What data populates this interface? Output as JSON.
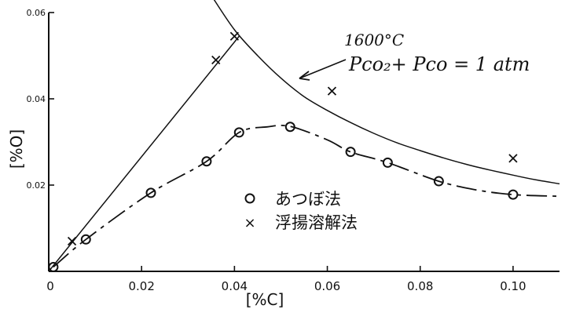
{
  "chart_data": {
    "type": "scatter",
    "title": "",
    "xlabel": "[%C]",
    "ylabel": "[%O]",
    "xlim": [
      0,
      0.11
    ],
    "ylim": [
      0,
      0.06
    ],
    "grid": false,
    "x_ticks": [
      {
        "value": 0,
        "label": "0"
      },
      {
        "value": 0.02,
        "label": "0.02"
      },
      {
        "value": 0.04,
        "label": "0.04"
      },
      {
        "value": 0.06,
        "label": "0.06"
      },
      {
        "value": 0.08,
        "label": "0.08"
      },
      {
        "value": 0.1,
        "label": "0.10"
      }
    ],
    "y_ticks": [
      {
        "value": 0.02,
        "label": "0.02"
      },
      {
        "value": 0.04,
        "label": "0.04"
      },
      {
        "value": 0.06,
        "label": "0.06"
      }
    ],
    "annotation": {
      "line1": "1600°C",
      "line2": "Pco₂+ Pco = 1 atm"
    },
    "equilibrium_curve": {
      "x": [
        0.035,
        0.04,
        0.045,
        0.05,
        0.055,
        0.06,
        0.065,
        0.07,
        0.075,
        0.08,
        0.085,
        0.09,
        0.095,
        0.1,
        0.105,
        0.11
      ],
      "y": [
        0.064,
        0.056,
        0.05,
        0.0448,
        0.0405,
        0.0373,
        0.0345,
        0.032,
        0.0298,
        0.028,
        0.0263,
        0.0248,
        0.0235,
        0.0223,
        0.0212,
        0.0203
      ]
    },
    "series": [
      {
        "name": "あつぼ法",
        "marker": "circle",
        "x": [
          0.001,
          0.008,
          0.022,
          0.034,
          0.041,
          0.052,
          0.065,
          0.073,
          0.084,
          0.1
        ],
        "y": [
          0.001,
          0.0074,
          0.0182,
          0.0255,
          0.0322,
          0.0335,
          0.0277,
          0.0252,
          0.0209,
          0.0178
        ],
        "curve_x": [
          0.001,
          0.008,
          0.022,
          0.034,
          0.041,
          0.047,
          0.052,
          0.06,
          0.065,
          0.073,
          0.084,
          0.092,
          0.1,
          0.11
        ],
        "curve_y": [
          0.001,
          0.0074,
          0.0182,
          0.0255,
          0.0322,
          0.0335,
          0.0336,
          0.0305,
          0.0277,
          0.0252,
          0.0209,
          0.0189,
          0.0178,
          0.0174
        ]
      },
      {
        "name": "浮揚溶解法",
        "marker": "x",
        "x": [
          0.005,
          0.036,
          0.04,
          0.061,
          0.1
        ],
        "y": [
          0.007,
          0.049,
          0.0545,
          0.0418,
          0.0262
        ]
      }
    ],
    "straight_line": {
      "x": [
        0.0,
        0.041
      ],
      "y": [
        0.0,
        0.0545
      ]
    },
    "legend_placement": "center-bottom"
  }
}
